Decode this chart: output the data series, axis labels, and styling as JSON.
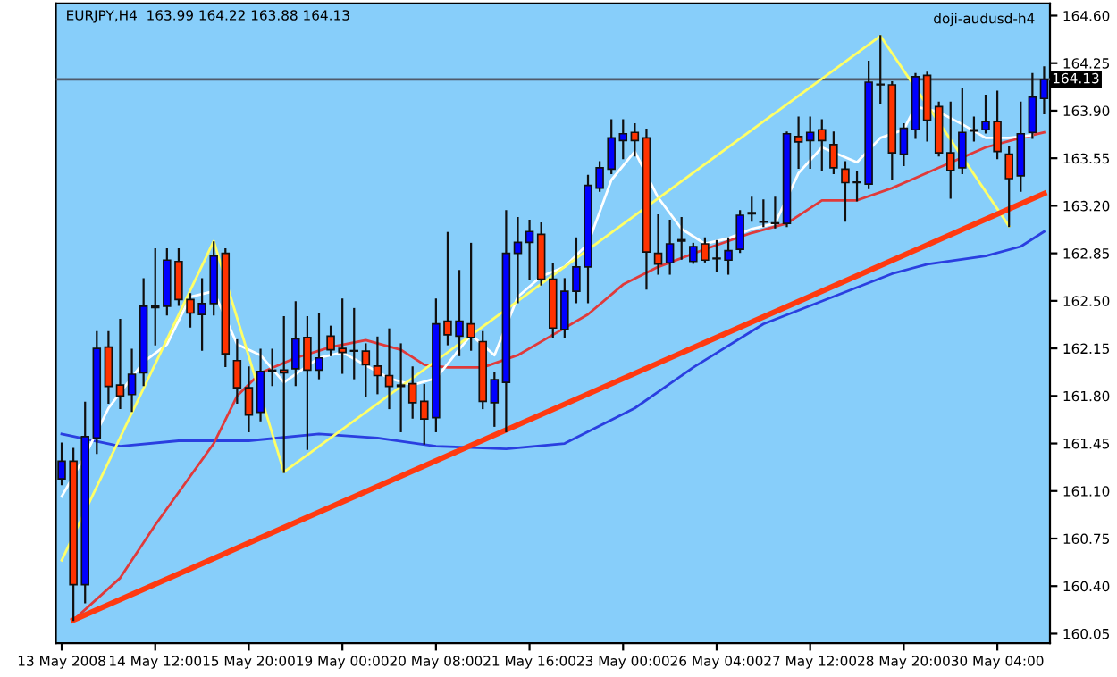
{
  "chart_data": {
    "type": "candlestick",
    "title": "EURJPY,H4  163.99 164.22 163.88 164.13",
    "annotations": [
      "doji-audusd-h4"
    ],
    "categories": [
      "13 May 2008",
      null,
      null,
      null,
      null,
      null,
      null,
      null,
      "14 May 12:00",
      null,
      null,
      null,
      null,
      null,
      null,
      null,
      "15 May 20:00",
      null,
      null,
      null,
      null,
      null,
      null,
      null,
      "19 May 00:00",
      null,
      null,
      null,
      null,
      null,
      null,
      null,
      "20 May 08:00",
      null,
      null,
      null,
      null,
      null,
      null,
      null,
      "21 May 16:00",
      null,
      null,
      null,
      null,
      null,
      null,
      null,
      "23 May 00:00",
      null,
      null,
      null,
      null,
      null,
      null,
      null,
      "26 May 04:00",
      null,
      null,
      null,
      null,
      null,
      null,
      null,
      "27 May 12:00",
      null,
      null,
      null,
      null,
      null,
      null,
      null,
      "28 May 20:00",
      null,
      null,
      null,
      null,
      null,
      null,
      null,
      "30 May 04:00",
      null,
      null,
      null,
      null
    ],
    "ohlc": [
      [
        161.19,
        161.45,
        161.15,
        161.32
      ],
      [
        161.32,
        161.41,
        160.15,
        160.41
      ],
      [
        160.41,
        161.75,
        160.28,
        161.5
      ],
      [
        161.49,
        162.27,
        161.38,
        162.15
      ],
      [
        162.16,
        162.27,
        161.75,
        161.87
      ],
      [
        161.88,
        162.36,
        161.71,
        161.8
      ],
      [
        161.81,
        162.14,
        161.69,
        161.96
      ],
      [
        161.97,
        162.66,
        161.88,
        162.46
      ],
      [
        162.46,
        162.88,
        162.18,
        162.45
      ],
      [
        162.46,
        162.88,
        162.4,
        162.8
      ],
      [
        162.79,
        162.88,
        162.47,
        162.51
      ],
      [
        162.51,
        162.55,
        162.31,
        162.41
      ],
      [
        162.4,
        162.66,
        162.14,
        162.48
      ],
      [
        162.48,
        162.93,
        162.4,
        162.83
      ],
      [
        162.85,
        162.88,
        162.02,
        162.11
      ],
      [
        162.06,
        162.21,
        161.75,
        161.86
      ],
      [
        161.86,
        162.01,
        161.54,
        161.66
      ],
      [
        161.68,
        162.14,
        161.62,
        161.98
      ],
      [
        161.98,
        162.14,
        161.88,
        161.99
      ],
      [
        161.99,
        162.38,
        161.24,
        161.97
      ],
      [
        162.0,
        162.49,
        161.88,
        162.22
      ],
      [
        162.23,
        162.38,
        161.41,
        161.99
      ],
      [
        161.99,
        162.4,
        161.93,
        162.08
      ],
      [
        162.24,
        162.31,
        162.1,
        162.14
      ],
      [
        162.15,
        162.51,
        161.97,
        162.12
      ],
      [
        162.13,
        162.44,
        161.93,
        162.13
      ],
      [
        162.13,
        162.18,
        161.8,
        162.03
      ],
      [
        162.02,
        162.23,
        161.82,
        161.95
      ],
      [
        161.95,
        162.29,
        161.71,
        161.87
      ],
      [
        161.88,
        162.18,
        161.54,
        161.87
      ],
      [
        161.89,
        162.01,
        161.64,
        161.75
      ],
      [
        161.76,
        161.88,
        161.45,
        161.63
      ],
      [
        161.64,
        162.51,
        161.54,
        162.33
      ],
      [
        162.35,
        163.0,
        162.18,
        162.25
      ],
      [
        162.24,
        162.72,
        162.1,
        162.35
      ],
      [
        162.33,
        162.92,
        162.14,
        162.23
      ],
      [
        162.2,
        162.27,
        161.71,
        161.76
      ],
      [
        161.75,
        161.97,
        161.58,
        161.92
      ],
      [
        161.9,
        163.16,
        161.54,
        162.85
      ],
      [
        162.85,
        163.11,
        162.49,
        162.93
      ],
      [
        162.93,
        163.09,
        162.66,
        163.01
      ],
      [
        162.99,
        163.07,
        162.62,
        162.66
      ],
      [
        162.66,
        162.77,
        162.23,
        162.3
      ],
      [
        162.29,
        162.66,
        162.23,
        162.57
      ],
      [
        162.57,
        162.96,
        162.49,
        162.75
      ],
      [
        162.75,
        163.42,
        162.49,
        163.35
      ],
      [
        163.33,
        163.52,
        163.31,
        163.48
      ],
      [
        163.47,
        163.83,
        163.44,
        163.7
      ],
      [
        163.68,
        163.83,
        163.55,
        163.73
      ],
      [
        163.74,
        163.8,
        163.57,
        163.68
      ],
      [
        163.7,
        163.76,
        162.59,
        162.86
      ],
      [
        162.85,
        163.13,
        162.7,
        162.77
      ],
      [
        162.78,
        163.09,
        162.7,
        162.92
      ],
      [
        162.94,
        163.11,
        162.81,
        162.95
      ],
      [
        162.79,
        162.92,
        162.78,
        162.9
      ],
      [
        162.92,
        162.96,
        162.79,
        162.8
      ],
      [
        162.81,
        162.94,
        162.72,
        162.81
      ],
      [
        162.8,
        162.96,
        162.7,
        162.87
      ],
      [
        162.88,
        163.16,
        162.86,
        163.13
      ],
      [
        163.14,
        163.26,
        163.09,
        163.15
      ],
      [
        163.08,
        163.24,
        163.05,
        163.08
      ],
      [
        163.07,
        163.26,
        163.04,
        163.07
      ],
      [
        163.07,
        163.74,
        163.05,
        163.73
      ],
      [
        163.71,
        163.85,
        163.48,
        163.67
      ],
      [
        163.68,
        163.85,
        163.48,
        163.74
      ],
      [
        163.76,
        163.83,
        163.46,
        163.68
      ],
      [
        163.65,
        163.74,
        163.44,
        163.48
      ],
      [
        163.47,
        163.52,
        163.09,
        163.37
      ],
      [
        163.37,
        163.45,
        163.24,
        163.37
      ],
      [
        163.36,
        164.26,
        163.33,
        164.11
      ],
      [
        164.09,
        164.45,
        163.96,
        164.09
      ],
      [
        164.09,
        164.11,
        163.4,
        163.59
      ],
      [
        163.58,
        163.8,
        163.5,
        163.77
      ],
      [
        163.76,
        164.17,
        163.7,
        164.15
      ],
      [
        164.16,
        164.18,
        163.68,
        163.83
      ],
      [
        163.93,
        163.96,
        163.57,
        163.59
      ],
      [
        163.59,
        163.96,
        163.26,
        163.46
      ],
      [
        163.48,
        164.06,
        163.44,
        163.74
      ],
      [
        163.75,
        163.85,
        163.68,
        163.76
      ],
      [
        163.76,
        164.01,
        163.74,
        163.82
      ],
      [
        163.82,
        164.04,
        163.55,
        163.6
      ],
      [
        163.58,
        163.63,
        163.05,
        163.4
      ],
      [
        163.42,
        163.96,
        163.31,
        163.73
      ],
      [
        163.74,
        164.17,
        163.7,
        164.0
      ],
      [
        163.99,
        164.22,
        163.88,
        164.13
      ]
    ],
    "colors": [
      "#0000ff",
      "#ff3300",
      "#0000ff",
      "#0000ff",
      "#ff3300",
      "#ff3300",
      "#0000ff",
      "#0000ff",
      "#ff3300",
      "#0000ff",
      "#ff3300",
      "#ff3300",
      "#0000ff",
      "#0000ff",
      "#ff3300",
      "#ff3300",
      "#ff3300",
      "#0000ff",
      "#0000ff",
      "#ff3300",
      "#0000ff",
      "#ff3300",
      "#0000ff",
      "#ff3300",
      "#ff3300",
      "#0000ff",
      "#ff3300",
      "#ff3300",
      "#ff3300",
      "#ff3300",
      "#ff3300",
      "#ff3300",
      "#0000ff",
      "#ff3300",
      "#0000ff",
      "#ff3300",
      "#ff3300",
      "#0000ff",
      "#0000ff",
      "#0000ff",
      "#0000ff",
      "#ff3300",
      "#ff3300",
      "#0000ff",
      "#0000ff",
      "#0000ff",
      "#0000ff",
      "#0000ff",
      "#0000ff",
      "#ff3300",
      "#ff3300",
      "#ff3300",
      "#0000ff",
      "#0000ff",
      "#0000ff",
      "#ff3300",
      "#0000ff",
      "#0000ff",
      "#0000ff",
      "#0000ff",
      "#0000ff",
      "#0000ff",
      "#0000ff",
      "#ff3300",
      "#0000ff",
      "#ff3300",
      "#ff3300",
      "#ff3300",
      "#0000ff",
      "#0000ff",
      "#0000ff",
      "#ff3300",
      "#0000ff",
      "#0000ff",
      "#ff3300",
      "#ff3300",
      "#ff3300",
      "#0000ff",
      "#0000ff",
      "#0000ff",
      "#ff3300",
      "#ff3300",
      "#0000ff",
      "#0000ff",
      "#0000ff"
    ],
    "series": [
      {
        "type": "line",
        "color": "#2a3fe0",
        "values": [
          161.52,
          null,
          null,
          null,
          null,
          161.43,
          null,
          null,
          null,
          null,
          161.47,
          null,
          null,
          null,
          null,
          null,
          161.47,
          null,
          null,
          null,
          null,
          null,
          161.52,
          null,
          null,
          null,
          null,
          161.49,
          null,
          null,
          null,
          null,
          161.43,
          null,
          null,
          null,
          null,
          null,
          161.41,
          null,
          null,
          null,
          null,
          161.45,
          null,
          null,
          null,
          null,
          null,
          161.71,
          null,
          null,
          null,
          null,
          162.01,
          null,
          null,
          null,
          null,
          null,
          162.33,
          null,
          null,
          null,
          null,
          null,
          null,
          null,
          null,
          null,
          null,
          162.7,
          null,
          null,
          162.77,
          null,
          null,
          null,
          null,
          162.83,
          null,
          null,
          162.9,
          null,
          163.01
        ]
      },
      {
        "type": "line",
        "color": "#e03a3a",
        "values": [
          null,
          160.15,
          null,
          null,
          null,
          160.46,
          null,
          null,
          160.85,
          null,
          null,
          null,
          null,
          161.45,
          null,
          161.8,
          null,
          161.97,
          null,
          null,
          162.08,
          null,
          null,
          162.16,
          null,
          null,
          162.21,
          null,
          null,
          162.14,
          null,
          162.03,
          null,
          162.01,
          null,
          null,
          162.01,
          null,
          null,
          162.1,
          null,
          null,
          162.25,
          null,
          null,
          162.4,
          null,
          null,
          162.62,
          null,
          null,
          162.75,
          null,
          null,
          null,
          162.88,
          null,
          null,
          null,
          163.0,
          null,
          null,
          163.07,
          null,
          null,
          163.24,
          null,
          null,
          163.24,
          null,
          null,
          163.33,
          null,
          null,
          null,
          163.48,
          null,
          null,
          null,
          163.63,
          null,
          null,
          163.7,
          null,
          163.74
        ]
      },
      {
        "type": "line",
        "color": "#ffffff",
        "values": [
          161.06,
          null,
          161.36,
          null,
          161.71,
          null,
          null,
          162.05,
          null,
          162.18,
          null,
          162.53,
          null,
          162.57,
          null,
          162.18,
          null,
          162.1,
          null,
          161.9,
          null,
          null,
          162.08,
          null,
          162.12,
          null,
          null,
          null,
          161.93,
          null,
          161.88,
          null,
          161.93,
          null,
          null,
          162.25,
          null,
          162.1,
          null,
          162.53,
          null,
          162.68,
          null,
          162.75,
          null,
          162.92,
          null,
          163.39,
          null,
          163.6,
          null,
          163.26,
          null,
          163.03,
          null,
          162.92,
          null,
          162.96,
          null,
          163.03,
          null,
          163.07,
          null,
          163.44,
          null,
          163.63,
          null,
          null,
          163.52,
          null,
          163.7,
          null,
          163.76,
          163.93,
          null,
          163.89,
          null,
          163.8,
          null,
          163.7,
          null,
          163.7,
          null,
          163.72,
          null
        ]
      },
      {
        "type": "line",
        "color": "#ffff66",
        "values": [
          160.59,
          null,
          null,
          null,
          null,
          null,
          null,
          null,
          null,
          null,
          null,
          null,
          null,
          162.94,
          null,
          null,
          null,
          null,
          null,
          161.24,
          null,
          null,
          null,
          null,
          null,
          null,
          null,
          null,
          null,
          null,
          null,
          null,
          null,
          null,
          null,
          null,
          null,
          null,
          null,
          null,
          null,
          null,
          null,
          null,
          null,
          null,
          null,
          null,
          null,
          null,
          null,
          null,
          null,
          null,
          null,
          null,
          null,
          null,
          null,
          null,
          null,
          null,
          null,
          null,
          null,
          null,
          null,
          null,
          null,
          null,
          164.45,
          null,
          null,
          null,
          null,
          null,
          null,
          null,
          null,
          null,
          null,
          163.05,
          null,
          null,
          null
        ]
      },
      {
        "type": "line",
        "color": "#ff3a10",
        "values": [
          null,
          160.15,
          null,
          null,
          null,
          null,
          null,
          null,
          null,
          null,
          null,
          null,
          null,
          null,
          null,
          null,
          null,
          null,
          null,
          null,
          null,
          null,
          null,
          null,
          null,
          null,
          null,
          null,
          null,
          null,
          null,
          null,
          null,
          null,
          null,
          null,
          null,
          null,
          null,
          null,
          null,
          null,
          null,
          null,
          null,
          null,
          null,
          null,
          null,
          null,
          null,
          null,
          null,
          null,
          null,
          null,
          null,
          null,
          null,
          null,
          null,
          null,
          null,
          null,
          null,
          null,
          null,
          null,
          null,
          null,
          null,
          null,
          null,
          null,
          null,
          null,
          null,
          null,
          null,
          null,
          null,
          null,
          null,
          null,
          163.29
        ]
      }
    ],
    "ylim": [
      159.98,
      164.69
    ],
    "yticks": [
      160.05,
      {
        "value": 160.4,
        "label": "160.40"
      },
      160.75,
      {
        "value": 161.1,
        "label": "161.10"
      },
      161.45,
      {
        "value": 161.8,
        "label": "161.80"
      },
      162.15,
      {
        "value": 162.5,
        "label": "162.50"
      },
      162.85,
      {
        "value": 163.2,
        "label": "163.20"
      },
      163.55,
      {
        "value": 163.9,
        "label": "163.90"
      },
      164.25,
      {
        "value": 164.6,
        "label": "164.60"
      }
    ],
    "ref_lines": [
      {
        "axis": "y",
        "value": 164.13,
        "label": "164.13",
        "color": "#505a6a"
      }
    ]
  }
}
